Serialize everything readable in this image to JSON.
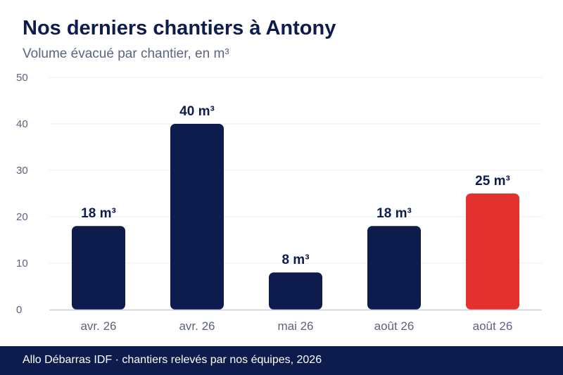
{
  "header": {
    "title": "Nos derniers chantiers à Antony",
    "subtitle": "Volume évacué par chantier, en m³"
  },
  "footer": {
    "source": "Allo Débarras IDF · chantiers relevés par nos équipes, 2026"
  },
  "colors": {
    "bar": "#0e1b4d",
    "highlight": "#e3312d",
    "grid": "#ececf2",
    "axis": "#c9cbe0"
  },
  "chart_data": {
    "type": "bar",
    "title": "Nos derniers chantiers à Antony",
    "subtitle": "Volume évacué par chantier, en m³",
    "xlabel": "",
    "ylabel": "",
    "categories": [
      "avr. 26",
      "avr. 26",
      "mai 26",
      "août 26",
      "août 26"
    ],
    "values": [
      18,
      40,
      8,
      18,
      25
    ],
    "data_labels": [
      "18 m³",
      "40 m³",
      "8 m³",
      "18 m³",
      "25 m³"
    ],
    "highlight_index": 4,
    "ylim": [
      0,
      50
    ],
    "yticks": [
      0,
      10,
      20,
      30,
      40,
      50
    ],
    "ytick_labels": [
      "0",
      "10",
      "20",
      "30",
      "40",
      "50"
    ],
    "grid": true,
    "legend": "none"
  }
}
